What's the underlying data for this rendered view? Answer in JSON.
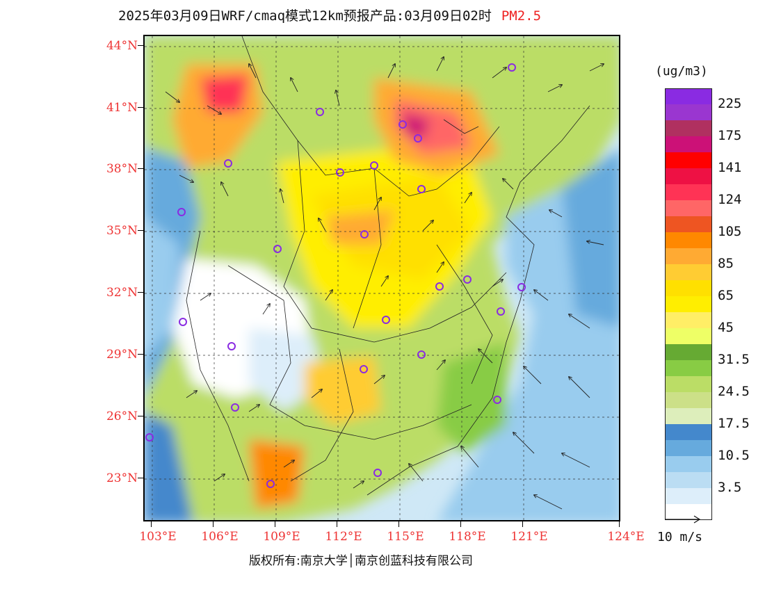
{
  "title": {
    "main": "2025年03月09日WRF/cmaq模式12km预报产品:03月09日02时",
    "species": "PM2.5"
  },
  "lat_labels": [
    "44°N",
    "41°N",
    "38°N",
    "35°N",
    "32°N",
    "29°N",
    "26°N",
    "23°N"
  ],
  "lon_labels": [
    "103°E",
    "106°E",
    "109°E",
    "112°E",
    "115°E",
    "118°E",
    "121°E",
    "124°E"
  ],
  "colorbar": {
    "unit": "(ug/m3)",
    "colors": [
      "#8a2be2",
      "#9a36d0",
      "#b03060",
      "#cc1177",
      "#ff0000",
      "#ee1144",
      "#ff3355",
      "#ff6666",
      "#ee5522",
      "#ff8800",
      "#ffaa33",
      "#ffcc33",
      "#ffe000",
      "#ffee00",
      "#ffee66",
      "#eeff66",
      "#66aa33",
      "#88cc44",
      "#bbdd66",
      "#cce088",
      "#ddeebb",
      "#4488cc",
      "#66aadd",
      "#99ccee",
      "#bbddf3",
      "#ddeefa",
      "#ffffff"
    ],
    "labels": [
      "225",
      "175",
      "141",
      "124",
      "105",
      "85",
      "65",
      "45",
      "31.5",
      "24.5",
      "17.5",
      "10.5",
      "3.5"
    ]
  },
  "wind_legend": "10 m/s",
  "copyright": "版权所有:南京大学│南京创蓝科技有限公司",
  "icons": {
    "city_marker": "purple-circle-icon",
    "wind_vector": "arrow-icon"
  }
}
